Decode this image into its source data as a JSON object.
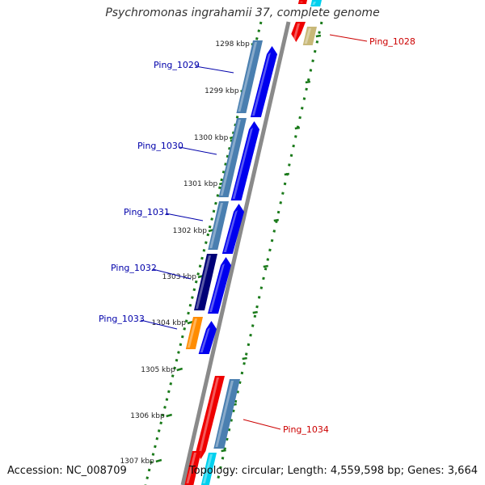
{
  "title": "Psychromonas ingrahamii 37, complete genome",
  "footer": {
    "accession": "Accession: NC_008709",
    "topology": "Topology: circular; Length: 4,559,598 bp; Genes: 3,664"
  },
  "kbp_labels": [
    "1298 kbp",
    "1299 kbp",
    "1300 kbp",
    "1301 kbp",
    "1302 kbp",
    "1303 kbp",
    "1304 kbp",
    "1305 kbp",
    "1306 kbp",
    "1307 kbp"
  ],
  "gene_labels": [
    {
      "text": "Ping_1028",
      "color": "#cc0000"
    },
    {
      "text": "Ping_1029",
      "color": "#0000aa"
    },
    {
      "text": "Ping_1030",
      "color": "#0000aa"
    },
    {
      "text": "Ping_1031",
      "color": "#0000aa"
    },
    {
      "text": "Ping_1032",
      "color": "#0000aa"
    },
    {
      "text": "Ping_1033",
      "color": "#0000aa"
    },
    {
      "text": "Ping_1034",
      "color": "#cc0000"
    }
  ],
  "colors": {
    "backbone": "#8a8a8a",
    "ticks": "#1a7a1a",
    "cds_blue": "#0000ee",
    "cds_steel": "#4a7fb0",
    "cds_navy": "#000077",
    "cds_orange": "#ff8c00",
    "cds_red": "#ee0000",
    "cds_cyan": "#00d0ee",
    "cds_khaki": "#c8b878"
  }
}
